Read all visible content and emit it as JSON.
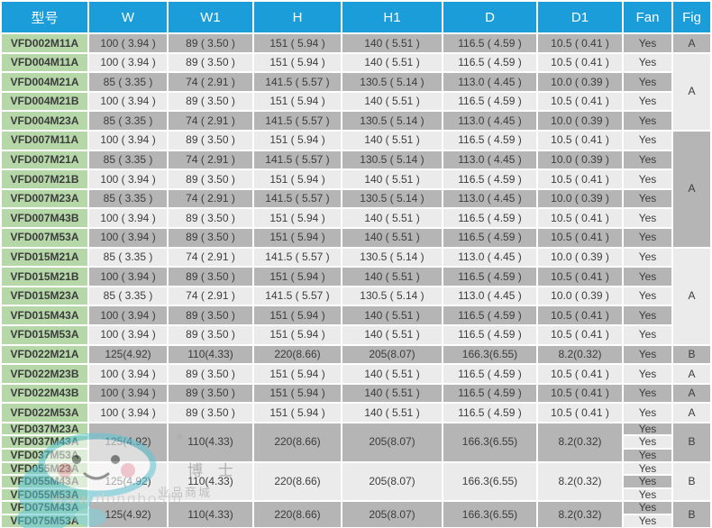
{
  "table": {
    "columns": [
      "型号",
      "W",
      "W1",
      "H",
      "H1",
      "D",
      "D1",
      "Fan",
      "Fig"
    ],
    "body": [
      {
        "model": "VFD002M11A",
        "dims": [
          "100 ( 3.94 )",
          "89 ( 3.50 )",
          "151 ( 5.94 )",
          "140 ( 5.51 )",
          "116.5 ( 4.59 )",
          "10.5 ( 0.41 )"
        ],
        "fan": "Yes",
        "fig": "A",
        "figSpan": 1
      },
      {
        "model": "VFD004M11A",
        "dims": [
          "100 ( 3.94 )",
          "89 ( 3.50 )",
          "151 ( 5.94 )",
          "140 ( 5.51 )",
          "116.5 ( 4.59 )",
          "10.5 ( 0.41 )"
        ],
        "fan": "Yes",
        "fig": "A",
        "figSpan": 4
      },
      {
        "model": "VFD004M21A",
        "dims": [
          "85 ( 3.35 )",
          "74 ( 2.91 )",
          "141.5 ( 5.57 )",
          "130.5 ( 5.14 )",
          "113.0 ( 4.45 )",
          "10.0 ( 0.39 )"
        ],
        "fan": "Yes"
      },
      {
        "model": "VFD004M21B",
        "dims": [
          "100 ( 3.94 )",
          "89 ( 3.50 )",
          "151 ( 5.94 )",
          "140 ( 5.51 )",
          "116.5 ( 4.59 )",
          "10.5 ( 0.41 )"
        ],
        "fan": "Yes"
      },
      {
        "model": "VFD004M23A",
        "dims": [
          "85 ( 3.35 )",
          "74 ( 2.91 )",
          "141.5 ( 5.57 )",
          "130.5 ( 5.14 )",
          "113.0 ( 4.45 )",
          "10.0 ( 0.39 )"
        ],
        "fan": "Yes"
      },
      {
        "model": "VFD007M11A",
        "dims": [
          "100 ( 3.94 )",
          "89 ( 3.50 )",
          "151 ( 5.94 )",
          "140 ( 5.51 )",
          "116.5 ( 4.59 )",
          "10.5 ( 0.41 )"
        ],
        "fan": "Yes",
        "fig": "A",
        "figSpan": 6
      },
      {
        "model": "VFD007M21A",
        "dims": [
          "85 ( 3.35 )",
          "74 ( 2.91 )",
          "141.5 ( 5.57 )",
          "130.5 ( 5.14 )",
          "113.0 ( 4.45 )",
          "10.0 ( 0.39 )"
        ],
        "fan": "Yes"
      },
      {
        "model": "VFD007M21B",
        "dims": [
          "100 ( 3.94 )",
          "89 ( 3.50 )",
          "151 ( 5.94 )",
          "140 ( 5.51 )",
          "116.5 ( 4.59 )",
          "10.5 ( 0.41 )"
        ],
        "fan": "Yes"
      },
      {
        "model": "VFD007M23A",
        "dims": [
          "85 ( 3.35 )",
          "74 ( 2.91 )",
          "141.5 ( 5.57 )",
          "130.5 ( 5.14 )",
          "113.0 ( 4.45 )",
          "10.0 ( 0.39 )"
        ],
        "fan": "Yes"
      },
      {
        "model": "VFD007M43B",
        "dims": [
          "100 ( 3.94 )",
          "89 ( 3.50 )",
          "151 ( 5.94 )",
          "140 ( 5.51 )",
          "116.5 ( 4.59 )",
          "10.5 ( 0.41 )"
        ],
        "fan": "Yes"
      },
      {
        "model": "VFD007M53A",
        "dims": [
          "100 ( 3.94 )",
          "89 ( 3.50 )",
          "151 ( 5.94 )",
          "140 ( 5.51 )",
          "116.5 ( 4.59 )",
          "10.5 ( 0.41 )"
        ],
        "fan": "Yes"
      },
      {
        "model": "VFD015M21A",
        "dims": [
          "85 ( 3.35 )",
          "74 ( 2.91 )",
          "141.5 ( 5.57 )",
          "130.5 ( 5.14 )",
          "113.0 ( 4.45 )",
          "10.0 ( 0.39 )"
        ],
        "fan": "Yes",
        "fig": "A",
        "figSpan": 5
      },
      {
        "model": "VFD015M21B",
        "dims": [
          "100 ( 3.94 )",
          "89 ( 3.50 )",
          "151 ( 5.94 )",
          "140 ( 5.51 )",
          "116.5 ( 4.59 )",
          "10.5 ( 0.41 )"
        ],
        "fan": "Yes"
      },
      {
        "model": "VFD015M23A",
        "dims": [
          "85 ( 3.35 )",
          "74 ( 2.91 )",
          "141.5 ( 5.57 )",
          "130.5 ( 5.14 )",
          "113.0 ( 4.45 )",
          "10.0 ( 0.39 )"
        ],
        "fan": "Yes"
      },
      {
        "model": "VFD015M43A",
        "dims": [
          "100 ( 3.94 )",
          "89 ( 3.50 )",
          "151 ( 5.94 )",
          "140 ( 5.51 )",
          "116.5 ( 4.59 )",
          "10.5 ( 0.41 )"
        ],
        "fan": "Yes"
      },
      {
        "model": "VFD015M53A",
        "dims": [
          "100 ( 3.94 )",
          "89 ( 3.50 )",
          "151 ( 5.94 )",
          "140 ( 5.51 )",
          "116.5 ( 4.59 )",
          "10.5 ( 0.41 )"
        ],
        "fan": "Yes"
      },
      {
        "model": "VFD022M21A",
        "dims": [
          "125(4.92)",
          "110(4.33)",
          "220(8.66)",
          "205(8.07)",
          "166.3(6.55)",
          "8.2(0.32)"
        ],
        "fan": "Yes",
        "fig": "B",
        "figSpan": 1
      },
      {
        "model": "VFD022M23B",
        "dims": [
          "100 ( 3.94 )",
          "89 ( 3.50 )",
          "151 ( 5.94 )",
          "140 ( 5.51 )",
          "116.5 ( 4.59 )",
          "10.5 ( 0.41 )"
        ],
        "fan": "Yes",
        "fig": "A",
        "figSpan": 1
      },
      {
        "model": "VFD022M43B",
        "dims": [
          "100 ( 3.94 )",
          "89 ( 3.50 )",
          "151 ( 5.94 )",
          "140 ( 5.51 )",
          "116.5 ( 4.59 )",
          "10.5 ( 0.41 )"
        ],
        "fan": "Yes",
        "fig": "A",
        "figSpan": 1
      },
      {
        "model": "VFD022M53A",
        "dims": [
          "100 ( 3.94 )",
          "89 ( 3.50 )",
          "151 ( 5.94 )",
          "140 ( 5.51 )",
          "116.5 ( 4.59 )",
          "10.5 ( 0.41 )"
        ],
        "fan": "Yes",
        "fig": "A",
        "figSpan": 1
      },
      {
        "models": [
          "VFD037M23A",
          "VFD037M43A",
          "VFD037M53A"
        ],
        "dims": [
          "125(4.92)",
          "110(4.33)",
          "220(8.66)",
          "205(8.07)",
          "166.3(6.55)",
          "8.2(0.32)"
        ],
        "fan": [
          "Yes",
          "Yes",
          "Yes"
        ],
        "fig": "B"
      },
      {
        "models": [
          "VFD055M23A",
          "VFD055M43A",
          "VFD055M53A"
        ],
        "dims": [
          "125(4.92)",
          "110(4.33)",
          "220(8.66)",
          "205(8.07)",
          "166.3(6.55)",
          "8.2(0.32)"
        ],
        "fan": [
          "Yes",
          "Yes",
          "Yes"
        ],
        "fig": "B"
      },
      {
        "models": [
          "VFD075M43A",
          "VFD075M53A"
        ],
        "dims": [
          "125(4.92)",
          "110(4.33)",
          "220(8.66)",
          "205(8.07)",
          "166.3(6.55)",
          "8.2(0.32)"
        ],
        "fan": [
          "Yes",
          "Yes"
        ],
        "fig": "B"
      }
    ],
    "colors": {
      "header_bg": "#1a9dd9",
      "model_bg": "#b6d8a9",
      "row_dark": "#b5b5b5",
      "row_light": "#ebebeb",
      "grid": "#ffffff"
    }
  },
  "watermark": {
    "line1": "博 士",
    "line2": "业品商城",
    "url": "www.dongboshi",
    "reg": "®"
  }
}
